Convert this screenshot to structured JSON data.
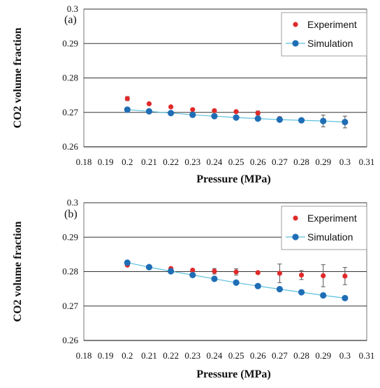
{
  "chart_data": [
    {
      "type": "scatter",
      "panel_label": "(a)",
      "xlabel": "Pressure (MPa)",
      "ylabel": "CO2 volume fraction",
      "xlim": [
        0.18,
        0.31
      ],
      "ylim": [
        0.26,
        0.3
      ],
      "x_ticks": [
        "0.18",
        "0.19",
        "0.2",
        "0.21",
        "0.22",
        "0.23",
        "0.24",
        "0.25",
        "0.26",
        "0.27",
        "0.28",
        "0.29",
        "0.3",
        "0.31"
      ],
      "y_ticks": [
        "0.26",
        "0.27",
        "0.28",
        "0.29",
        "0.3"
      ],
      "grid": "horizontal",
      "legend_position": "top-right",
      "x": [
        0.2,
        0.21,
        0.22,
        0.23,
        0.24,
        0.25,
        0.26,
        0.27,
        0.28,
        0.29,
        0.3
      ],
      "series": [
        {
          "name": "Experiment",
          "color": "#e02a2a",
          "values": [
            0.274,
            0.2725,
            0.2716,
            0.2708,
            0.2705,
            0.2702,
            0.2698,
            0.2682,
            0.2677,
            0.2675,
            0.2672
          ],
          "error": [
            0.0006,
            0.0003,
            0.0003,
            0.0002,
            0.0002,
            0.0002,
            0.0006,
            0.0005,
            0.0003,
            0.0017,
            0.0017
          ]
        },
        {
          "name": "Simulation",
          "color": "#1f6eb5",
          "line_color": "#5bc0de",
          "values": [
            0.2708,
            0.2703,
            0.2698,
            0.2693,
            0.2689,
            0.2685,
            0.2682,
            0.2679,
            0.2677,
            0.2675,
            0.2672
          ]
        }
      ]
    },
    {
      "type": "scatter",
      "panel_label": "(b)",
      "xlabel": "Pressure (MPa)",
      "ylabel": "CO2 volume fraction",
      "xlim": [
        0.18,
        0.31
      ],
      "ylim": [
        0.26,
        0.3
      ],
      "x_ticks": [
        "0.18",
        "0.19",
        "0.2",
        "0.21",
        "0.22",
        "0.23",
        "0.24",
        "0.25",
        "0.26",
        "0.27",
        "0.28",
        "0.29",
        "0.3",
        "0.31"
      ],
      "y_ticks": [
        "0.26",
        "0.27",
        "0.28",
        "0.29",
        "0.3"
      ],
      "grid": "horizontal",
      "legend_position": "top-right",
      "x": [
        0.2,
        0.21,
        0.22,
        0.23,
        0.24,
        0.25,
        0.26,
        0.27,
        0.28,
        0.29,
        0.3
      ],
      "series": [
        {
          "name": "Experiment",
          "color": "#e02a2a",
          "values": [
            0.2819,
            0.2813,
            0.2809,
            0.2804,
            0.2801,
            0.2799,
            0.2797,
            0.2795,
            0.279,
            0.2788,
            0.2787
          ],
          "error": [
            0.0002,
            0.0002,
            0.0003,
            0.0003,
            0.0008,
            0.0009,
            0.0003,
            0.0027,
            0.0013,
            0.0032,
            0.0025
          ]
        },
        {
          "name": "Simulation",
          "color": "#1f6eb5",
          "line_color": "#5bc0de",
          "values": [
            0.2826,
            0.2813,
            0.2801,
            0.279,
            0.2779,
            0.2768,
            0.2758,
            0.2749,
            0.274,
            0.2731,
            0.2723
          ]
        }
      ]
    }
  ]
}
